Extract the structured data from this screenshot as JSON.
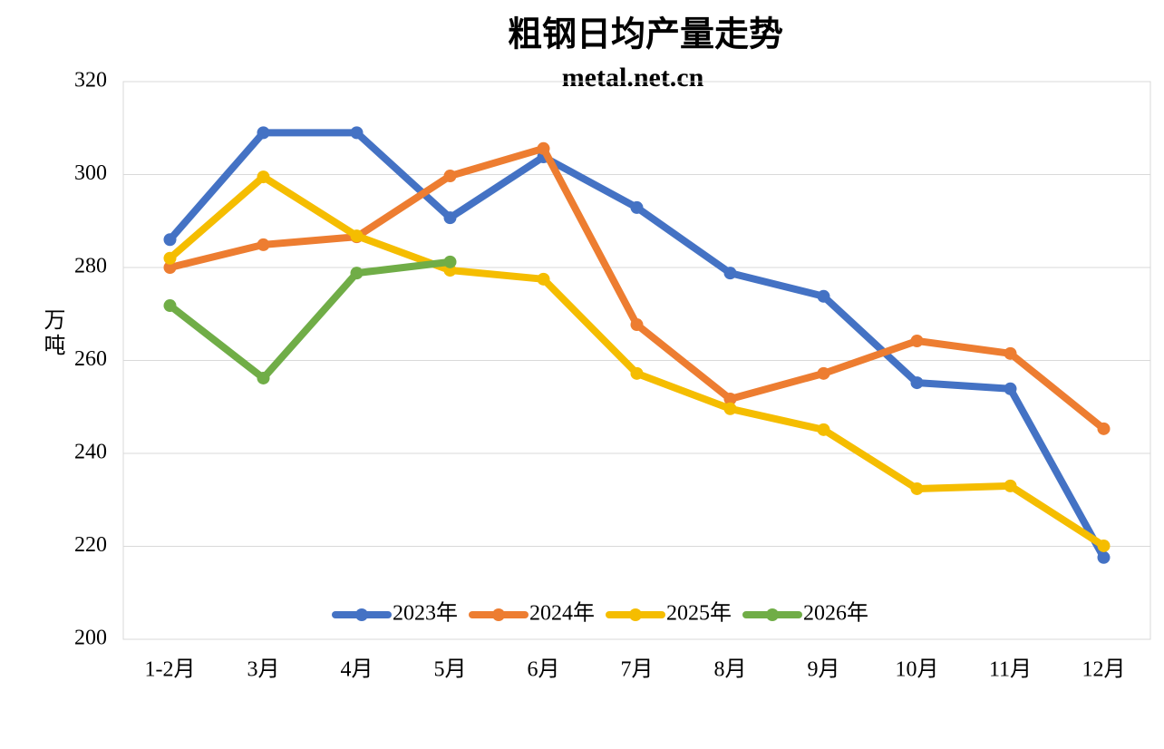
{
  "chart_data": {
    "type": "line",
    "title": "粗钢日均产量走势",
    "subtitle": "metal.net.cn",
    "y_label": "万吨",
    "categories": [
      "1-2月",
      "3月",
      "4月",
      "5月",
      "6月",
      "7月",
      "8月",
      "9月",
      "10月",
      "11月",
      "12月"
    ],
    "series": [
      {
        "name": "2023年",
        "color": "#4472c4",
        "values": [
          286,
          309,
          309,
          290.7,
          303.8,
          292.9,
          278.8,
          273.8,
          255.2,
          253.9,
          217.6
        ]
      },
      {
        "name": "2024年",
        "color": "#ed7d31",
        "values": [
          280,
          284.9,
          286.6,
          299.7,
          305.6,
          267.7,
          251.7,
          257.2,
          264.2,
          261.5,
          245.3
        ]
      },
      {
        "name": "2025年",
        "color": "#f5bd00",
        "values": [
          282,
          299.5,
          286.8,
          279.4,
          277.5,
          257.2,
          249.6,
          245.1,
          232.4,
          233,
          220.1
        ]
      },
      {
        "name": "2026年",
        "color": "#70ad47",
        "values": [
          271.8,
          256.2,
          278.8,
          281.2,
          null,
          null,
          null,
          null,
          null,
          null,
          null
        ]
      }
    ],
    "ylim": [
      200,
      320
    ],
    "yticks": [
      200,
      220,
      240,
      260,
      280,
      300,
      320
    ],
    "grid": true,
    "legend": "bottom"
  }
}
